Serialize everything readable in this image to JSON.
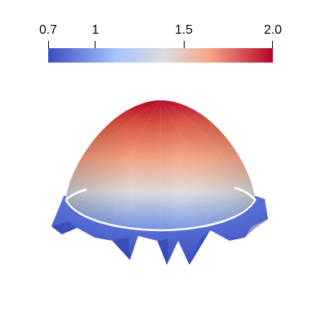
{
  "colorbar": {
    "ticks": [
      {
        "label": "0.7",
        "value": 0.7
      },
      {
        "label": "1",
        "value": 1.0
      },
      {
        "label": "1.5",
        "value": 1.5
      },
      {
        "label": "2.0",
        "value": 2.0
      }
    ],
    "range": [
      0.7,
      2.0
    ],
    "colormap": "cool-to-warm",
    "colors": {
      "low": "#3b4cc0",
      "mid_low": "#a5c3fe",
      "mid": "#dddddd",
      "mid_high": "#f5a586",
      "high": "#b40426"
    }
  },
  "scene": {
    "object": "dome-surface",
    "ring_color": "#ffffff",
    "background": "#ffffff"
  }
}
